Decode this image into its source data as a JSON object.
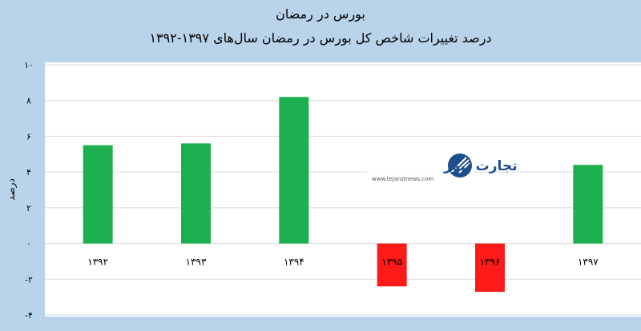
{
  "chart_data": {
    "type": "bar",
    "title": "بورس در رمضان",
    "subtitle": "درصد تغییرات شاخص کل بورس در رمضان سال‌های ۱۳۹۷-۱۳۹۲",
    "ylabel": "درصد",
    "xlabel": "",
    "ylim": [
      -4,
      10
    ],
    "yticks": [
      10,
      8,
      6,
      4,
      2,
      0,
      -2,
      -4
    ],
    "ytick_labels": [
      "۱۰",
      "۸",
      "۶",
      "۴",
      "۲",
      "۰",
      "-۲",
      "-۴"
    ],
    "grid": true,
    "categories": [
      "۱۳۹۲",
      "۱۳۹۳",
      "۱۳۹۴",
      "۱۳۹۵",
      "۱۳۹۶",
      "۱۳۹۷"
    ],
    "values": [
      5.5,
      5.6,
      8.2,
      -2.4,
      -2.7,
      4.4
    ],
    "colors": {
      "positive": "#1db050",
      "negative": "#ff1a1a",
      "background": "#b9d3ea",
      "plot": "#ffffff",
      "grid": "#d9d9d9"
    }
  },
  "watermark": {
    "brand": "تجارت نیوز",
    "url": "www.tejaratnews.com",
    "icon": "tejaratnews-logo-icon"
  }
}
